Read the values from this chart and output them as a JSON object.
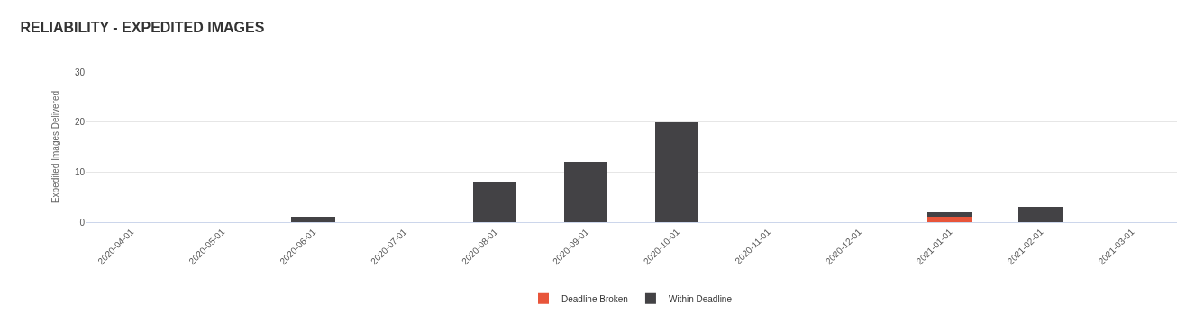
{
  "chart_data": {
    "type": "bar",
    "title": "RELIABILITY - EXPEDITED IMAGES",
    "ylabel": "Expedited Images Delivered",
    "categories": [
      "2020-04-01",
      "2020-05-01",
      "2020-06-01",
      "2020-07-01",
      "2020-08-01",
      "2020-09-01",
      "2020-10-01",
      "2020-11-01",
      "2020-12-01",
      "2021-01-01",
      "2021-02-01",
      "2021-03-01"
    ],
    "series": [
      {
        "name": "Deadline Broken",
        "color": "#e8553a",
        "values": [
          0,
          0,
          0,
          0,
          0,
          0,
          0,
          0,
          0,
          1,
          0,
          0
        ]
      },
      {
        "name": "Within Deadline",
        "color": "#434245",
        "values": [
          0,
          0,
          1,
          0,
          8,
          12,
          20,
          0,
          0,
          1,
          3,
          0
        ]
      }
    ],
    "stacked": true,
    "ylim": [
      0,
      30
    ],
    "yticks": [
      0,
      10,
      20,
      30
    ],
    "grid": "y",
    "legend": "bottom"
  }
}
